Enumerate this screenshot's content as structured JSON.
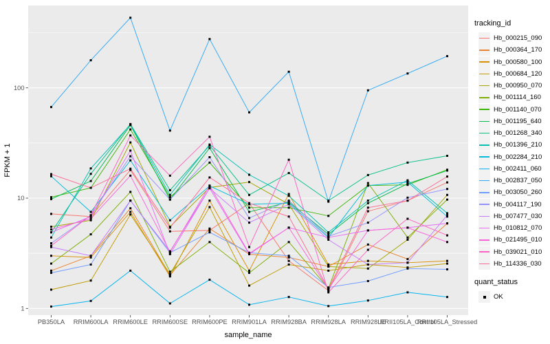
{
  "page": {
    "background": "#FFFFFF"
  },
  "chart_data": {
    "type": "line",
    "title": "",
    "xlabel": "sample_name",
    "ylabel": "FPKM + 1",
    "x_categories": [
      "PB350LA",
      "RRIM600LA",
      "RRIM600LE",
      "RRIM600SE",
      "RRIM600PE",
      "RRIM901LA",
      "RRIM928BA",
      "RRIM928LA",
      "RRIM928LE",
      "RRII105LA_Control",
      "RRII105LA_Stressed"
    ],
    "y_axis": {
      "scale": "log10",
      "ticks": [
        1,
        10,
        100
      ],
      "minor_ticks": [
        3.162,
        31.623,
        316.228
      ],
      "range": [
        0.9,
        560
      ]
    },
    "panel_bg": "#EBEBEB",
    "grid_color": "#FFFFFF",
    "tick_color": "#333333",
    "tick_label_color": "#4D4D4D",
    "point_shape": "square",
    "point_color": "#000000",
    "legend": {
      "title": "tracking_id",
      "position": "right",
      "key_bg": "#F2F2F2"
    },
    "quant_legend": {
      "title": "quant_status",
      "items": [
        {
          "label": "OK",
          "shape": "square",
          "color": "#000000"
        }
      ]
    },
    "series": [
      {
        "name": "Hb_000215_090",
        "color": "#F8766D",
        "values": [
          7.2,
          6.8,
          18.0,
          5.0,
          5.1,
          9.0,
          2.7,
          1.45,
          7.6,
          9.5,
          13.9
        ]
      },
      {
        "name": "Hb_000364_170",
        "color": "#EA8331",
        "values": [
          2.2,
          3.0,
          8.1,
          2.0,
          5.3,
          3.1,
          2.9,
          2.4,
          3.8,
          2.8,
          5.9
        ]
      },
      {
        "name": "Hb_000580_100",
        "color": "#D89000",
        "values": [
          3.0,
          2.9,
          7.5,
          1.95,
          9.5,
          2.2,
          10.9,
          2.5,
          2.7,
          2.6,
          2.7
        ]
      },
      {
        "name": "Hb_000684_120",
        "color": "#C09B00",
        "values": [
          1.48,
          1.79,
          7.1,
          2.05,
          8.3,
          1.61,
          2.5,
          2.2,
          2.5,
          2.35,
          2.55
        ]
      },
      {
        "name": "Hb_000950_070",
        "color": "#A3A500",
        "values": [
          5.5,
          6.3,
          32.0,
          5.5,
          12.5,
          14.0,
          8.8,
          2.4,
          2.3,
          4.2,
          10.7
        ]
      },
      {
        "name": "Hb_001114_160",
        "color": "#7CAE00",
        "values": [
          2.55,
          4.7,
          11.4,
          2.15,
          4.0,
          2.1,
          4.0,
          1.52,
          13.7,
          4.4,
          9.7
        ]
      },
      {
        "name": "Hb_001140_070",
        "color": "#39B600",
        "values": [
          10.2,
          12.4,
          42.0,
          10.2,
          21.0,
          8.2,
          8.2,
          6.9,
          13.0,
          13.2,
          18.1
        ]
      },
      {
        "name": "Hb_001195_640",
        "color": "#00BB4E",
        "values": [
          9.8,
          14.3,
          46.0,
          9.7,
          28.5,
          7.5,
          9.2,
          4.7,
          9.0,
          13.5,
          17.8
        ]
      },
      {
        "name": "Hb_001268_340",
        "color": "#00C087",
        "values": [
          4.9,
          16.6,
          47.0,
          11.8,
          30.0,
          10.7,
          16.9,
          9.5,
          16.2,
          21.0,
          24.2
        ]
      },
      {
        "name": "Hb_001396_210",
        "color": "#00C0B2",
        "values": [
          4.4,
          18.6,
          46.5,
          10.7,
          30.6,
          16.3,
          10.5,
          4.9,
          9.5,
          14.5,
          7.3
        ]
      },
      {
        "name": "Hb_002284_210",
        "color": "#00BCD8",
        "values": [
          15.8,
          7.5,
          22.0,
          6.3,
          12.9,
          8.8,
          9.0,
          4.4,
          13.0,
          14.0,
          6.8
        ]
      },
      {
        "name": "Hb_002411_060",
        "color": "#00B3F0",
        "values": [
          1.04,
          1.17,
          2.2,
          1.11,
          1.82,
          1.08,
          1.27,
          1.05,
          1.18,
          1.4,
          1.27
        ]
      },
      {
        "name": "Hb_002837_050",
        "color": "#2FA9F5",
        "values": [
          67,
          178,
          432,
          41,
          277,
          60,
          140,
          9.3,
          95,
          135,
          194
        ]
      },
      {
        "name": "Hb_003050_260",
        "color": "#6E9BFF",
        "values": [
          2.1,
          2.5,
          9.5,
          3.2,
          4.9,
          3.2,
          3.0,
          1.55,
          1.77,
          2.3,
          2.26
        ]
      },
      {
        "name": "Hb_004117_190",
        "color": "#9590FF",
        "values": [
          3.9,
          7.0,
          24.0,
          9.7,
          23.5,
          6.6,
          9.5,
          4.5,
          6.0,
          10.1,
          12.1
        ]
      },
      {
        "name": "Hb_007477_030",
        "color": "#C77CFF",
        "values": [
          3.6,
          3.0,
          9.5,
          3.3,
          12.3,
          6.0,
          8.8,
          4.2,
          2.5,
          2.6,
          7.0
        ]
      },
      {
        "name": "Hb_010812_070",
        "color": "#E76BF3",
        "values": [
          4.9,
          6.8,
          27.0,
          3.1,
          12.3,
          3.1,
          5.4,
          4.4,
          5.1,
          5.4,
          5.9
        ]
      },
      {
        "name": "Hb_021495_010",
        "color": "#FA62DB",
        "values": [
          5.2,
          6.5,
          16.0,
          3.25,
          13.0,
          3.15,
          5.4,
          1.5,
          5.1,
          5.4,
          4.0
        ]
      },
      {
        "name": "Hb_039021_010",
        "color": "#FF61C2",
        "values": [
          3.7,
          7.0,
          37.0,
          16.0,
          36.0,
          3.6,
          22.3,
          1.4,
          3.4,
          6.5,
          4.6
        ]
      },
      {
        "name": "Hb_114336_030",
        "color": "#FF6A93",
        "values": [
          16.5,
          12.4,
          18.5,
          5.4,
          15.4,
          9.0,
          6.8,
          1.5,
          8.2,
          9.5,
          15.7
        ]
      }
    ]
  }
}
